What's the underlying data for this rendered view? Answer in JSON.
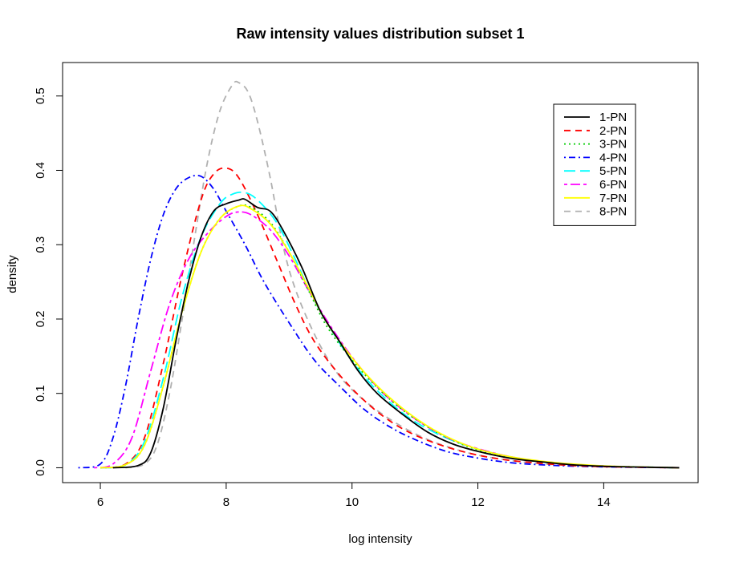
{
  "chart_data": {
    "type": "line",
    "title": "Raw intensity values distribution subset 1",
    "xlabel": "log intensity",
    "ylabel": "density",
    "xlim": [
      5.4,
      15.5
    ],
    "ylim": [
      -0.02,
      0.545
    ],
    "x_ticks": [
      6,
      8,
      10,
      12,
      14
    ],
    "y_ticks": [
      0.0,
      0.1,
      0.2,
      0.3,
      0.4,
      0.5
    ],
    "y_tick_labels": [
      "0.0",
      "0.1",
      "0.2",
      "0.3",
      "0.4",
      "0.5"
    ],
    "legend_position": "top-right",
    "grid": false,
    "series": [
      {
        "name": "1-PN",
        "color": "#000000",
        "dash": "solid",
        "points": [
          [
            6.2,
            0.0
          ],
          [
            6.6,
            0.003
          ],
          [
            6.8,
            0.02
          ],
          [
            7.0,
            0.08
          ],
          [
            7.2,
            0.17
          ],
          [
            7.4,
            0.25
          ],
          [
            7.6,
            0.31
          ],
          [
            7.8,
            0.345
          ],
          [
            8.0,
            0.355
          ],
          [
            8.2,
            0.36
          ],
          [
            8.3,
            0.361
          ],
          [
            8.5,
            0.35
          ],
          [
            8.7,
            0.345
          ],
          [
            8.9,
            0.32
          ],
          [
            9.2,
            0.27
          ],
          [
            9.5,
            0.21
          ],
          [
            9.8,
            0.17
          ],
          [
            10.1,
            0.13
          ],
          [
            10.4,
            0.1
          ],
          [
            10.8,
            0.072
          ],
          [
            11.2,
            0.048
          ],
          [
            11.6,
            0.032
          ],
          [
            12.0,
            0.022
          ],
          [
            12.5,
            0.013
          ],
          [
            13.0,
            0.008
          ],
          [
            13.5,
            0.004
          ],
          [
            14.0,
            0.002
          ],
          [
            14.5,
            0.001
          ],
          [
            15.2,
            0.0
          ]
        ]
      },
      {
        "name": "2-PN",
        "color": "#ff0000",
        "dash": "dashed",
        "points": [
          [
            6.0,
            0.0
          ],
          [
            6.4,
            0.005
          ],
          [
            6.7,
            0.04
          ],
          [
            7.0,
            0.14
          ],
          [
            7.3,
            0.26
          ],
          [
            7.6,
            0.36
          ],
          [
            7.8,
            0.395
          ],
          [
            8.0,
            0.403
          ],
          [
            8.2,
            0.39
          ],
          [
            8.5,
            0.34
          ],
          [
            8.8,
            0.28
          ],
          [
            9.1,
            0.22
          ],
          [
            9.4,
            0.17
          ],
          [
            9.8,
            0.125
          ],
          [
            10.2,
            0.09
          ],
          [
            10.6,
            0.063
          ],
          [
            11.0,
            0.044
          ],
          [
            11.5,
            0.028
          ],
          [
            12.0,
            0.017
          ],
          [
            12.5,
            0.01
          ],
          [
            13.0,
            0.006
          ],
          [
            13.5,
            0.003
          ],
          [
            14.0,
            0.0015
          ],
          [
            14.5,
            0.0007
          ],
          [
            15.2,
            0.0
          ]
        ]
      },
      {
        "name": "3-PN",
        "color": "#00cc00",
        "dash": "dotted",
        "points": [
          [
            6.0,
            0.0
          ],
          [
            6.4,
            0.004
          ],
          [
            6.7,
            0.03
          ],
          [
            7.0,
            0.11
          ],
          [
            7.3,
            0.21
          ],
          [
            7.6,
            0.29
          ],
          [
            7.9,
            0.335
          ],
          [
            8.2,
            0.352
          ],
          [
            8.4,
            0.35
          ],
          [
            8.7,
            0.33
          ],
          [
            9.0,
            0.29
          ],
          [
            9.3,
            0.24
          ],
          [
            9.6,
            0.19
          ],
          [
            10.0,
            0.145
          ],
          [
            10.4,
            0.108
          ],
          [
            10.8,
            0.078
          ],
          [
            11.2,
            0.055
          ],
          [
            11.6,
            0.037
          ],
          [
            12.0,
            0.024
          ],
          [
            12.5,
            0.014
          ],
          [
            13.0,
            0.008
          ],
          [
            13.5,
            0.0045
          ],
          [
            14.0,
            0.0022
          ],
          [
            14.6,
            0.001
          ],
          [
            15.2,
            0.0
          ]
        ]
      },
      {
        "name": "4-PN",
        "color": "#0000ff",
        "dash": "dashdot",
        "points": [
          [
            5.65,
            0.0
          ],
          [
            6.0,
            0.005
          ],
          [
            6.2,
            0.04
          ],
          [
            6.4,
            0.11
          ],
          [
            6.6,
            0.2
          ],
          [
            6.8,
            0.28
          ],
          [
            7.0,
            0.34
          ],
          [
            7.2,
            0.375
          ],
          [
            7.4,
            0.39
          ],
          [
            7.6,
            0.392
          ],
          [
            7.8,
            0.375
          ],
          [
            8.0,
            0.345
          ],
          [
            8.3,
            0.3
          ],
          [
            8.6,
            0.25
          ],
          [
            9.0,
            0.195
          ],
          [
            9.4,
            0.145
          ],
          [
            9.8,
            0.11
          ],
          [
            10.2,
            0.078
          ],
          [
            10.6,
            0.055
          ],
          [
            11.0,
            0.038
          ],
          [
            11.5,
            0.022
          ],
          [
            12.0,
            0.013
          ],
          [
            12.5,
            0.007
          ],
          [
            13.0,
            0.004
          ],
          [
            13.6,
            0.002
          ],
          [
            14.3,
            0.0008
          ],
          [
            15.2,
            0.0
          ]
        ]
      },
      {
        "name": "5-PN",
        "color": "#00ffff",
        "dash": "longdash",
        "points": [
          [
            6.0,
            0.0
          ],
          [
            6.4,
            0.004
          ],
          [
            6.7,
            0.035
          ],
          [
            7.0,
            0.12
          ],
          [
            7.3,
            0.23
          ],
          [
            7.6,
            0.31
          ],
          [
            7.9,
            0.355
          ],
          [
            8.1,
            0.368
          ],
          [
            8.3,
            0.37
          ],
          [
            8.5,
            0.36
          ],
          [
            8.8,
            0.33
          ],
          [
            9.1,
            0.28
          ],
          [
            9.4,
            0.225
          ],
          [
            9.8,
            0.168
          ],
          [
            10.2,
            0.122
          ],
          [
            10.6,
            0.088
          ],
          [
            11.0,
            0.062
          ],
          [
            11.5,
            0.04
          ],
          [
            12.0,
            0.025
          ],
          [
            12.5,
            0.015
          ],
          [
            13.0,
            0.008
          ],
          [
            13.5,
            0.0045
          ],
          [
            14.0,
            0.0022
          ],
          [
            14.6,
            0.001
          ],
          [
            15.2,
            0.0
          ]
        ]
      },
      {
        "name": "6-PN",
        "color": "#ff00ff",
        "dash": "twodash",
        "points": [
          [
            5.9,
            0.0
          ],
          [
            6.2,
            0.005
          ],
          [
            6.5,
            0.04
          ],
          [
            6.8,
            0.13
          ],
          [
            7.1,
            0.22
          ],
          [
            7.4,
            0.28
          ],
          [
            7.7,
            0.315
          ],
          [
            8.0,
            0.338
          ],
          [
            8.2,
            0.344
          ],
          [
            8.4,
            0.34
          ],
          [
            8.7,
            0.32
          ],
          [
            9.0,
            0.285
          ],
          [
            9.3,
            0.24
          ],
          [
            9.7,
            0.185
          ],
          [
            10.1,
            0.138
          ],
          [
            10.5,
            0.1
          ],
          [
            10.9,
            0.072
          ],
          [
            11.3,
            0.05
          ],
          [
            11.7,
            0.034
          ],
          [
            12.2,
            0.021
          ],
          [
            12.7,
            0.012
          ],
          [
            13.2,
            0.007
          ],
          [
            13.7,
            0.0035
          ],
          [
            14.3,
            0.0015
          ],
          [
            15.2,
            0.0
          ]
        ]
      },
      {
        "name": "7-PN",
        "color": "#ffff00",
        "dash": "solid",
        "points": [
          [
            6.0,
            0.0
          ],
          [
            6.4,
            0.004
          ],
          [
            6.7,
            0.03
          ],
          [
            7.0,
            0.11
          ],
          [
            7.3,
            0.21
          ],
          [
            7.6,
            0.29
          ],
          [
            7.9,
            0.335
          ],
          [
            8.2,
            0.352
          ],
          [
            8.4,
            0.348
          ],
          [
            8.7,
            0.328
          ],
          [
            9.0,
            0.29
          ],
          [
            9.3,
            0.243
          ],
          [
            9.6,
            0.195
          ],
          [
            10.0,
            0.148
          ],
          [
            10.4,
            0.11
          ],
          [
            10.8,
            0.08
          ],
          [
            11.2,
            0.056
          ],
          [
            11.6,
            0.038
          ],
          [
            12.0,
            0.025
          ],
          [
            12.5,
            0.015
          ],
          [
            13.0,
            0.009
          ],
          [
            13.5,
            0.005
          ],
          [
            14.0,
            0.0025
          ],
          [
            14.6,
            0.001
          ],
          [
            15.2,
            0.0
          ]
        ]
      },
      {
        "name": "8-PN",
        "color": "#b0b0b0",
        "dash": "dashed",
        "points": [
          [
            6.4,
            0.0
          ],
          [
            6.7,
            0.005
          ],
          [
            6.9,
            0.03
          ],
          [
            7.1,
            0.1
          ],
          [
            7.3,
            0.2
          ],
          [
            7.5,
            0.31
          ],
          [
            7.7,
            0.41
          ],
          [
            7.9,
            0.48
          ],
          [
            8.1,
            0.515
          ],
          [
            8.2,
            0.518
          ],
          [
            8.35,
            0.505
          ],
          [
            8.5,
            0.465
          ],
          [
            8.7,
            0.39
          ],
          [
            8.9,
            0.3
          ],
          [
            9.1,
            0.24
          ],
          [
            9.4,
            0.18
          ],
          [
            9.7,
            0.135
          ],
          [
            10.0,
            0.105
          ],
          [
            10.4,
            0.077
          ],
          [
            10.8,
            0.055
          ],
          [
            11.2,
            0.038
          ],
          [
            11.6,
            0.026
          ],
          [
            12.0,
            0.017
          ],
          [
            12.5,
            0.01
          ],
          [
            13.0,
            0.0055
          ],
          [
            13.5,
            0.003
          ],
          [
            14.2,
            0.0012
          ],
          [
            15.2,
            0.0
          ]
        ]
      }
    ]
  }
}
